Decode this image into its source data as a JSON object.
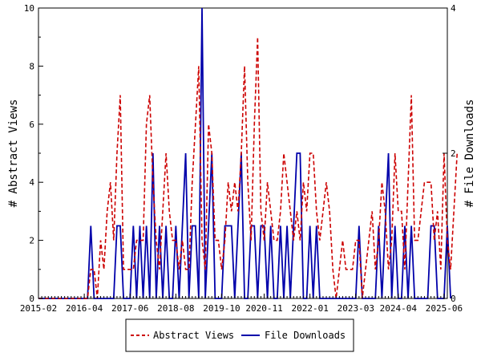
{
  "chart_data": {
    "type": "line",
    "x_axis": {
      "tick_labels": [
        "2015-02",
        "2016-04",
        "2017-06",
        "2018-08",
        "2019-10",
        "2020-11",
        "2022-01",
        "2023-03",
        "2024-04",
        "2025-06"
      ],
      "range_months": [
        0,
        125
      ],
      "tick_month_offsets": [
        0,
        14,
        28,
        42,
        56,
        69,
        83,
        97,
        110,
        124
      ]
    },
    "y_left": {
      "label": "# Abstract Views",
      "ylim": [
        0,
        10
      ],
      "ticks": [
        "0",
        "2",
        "4",
        "6",
        "8",
        "10"
      ]
    },
    "y_right": {
      "label": "# File Downloads",
      "ylim": [
        0,
        4
      ],
      "ticks": [
        "0",
        "2",
        "4"
      ]
    },
    "legend": {
      "placement": "bottom-center"
    },
    "series": [
      {
        "name": "Abstract Views",
        "axis": "left",
        "color": "#cc0000",
        "dash": "dashed",
        "values": [
          0,
          0,
          0,
          0,
          0,
          0,
          0,
          0,
          0,
          0,
          0,
          0,
          0,
          0,
          0,
          0,
          1,
          1,
          0,
          2,
          1,
          3,
          4,
          2,
          5,
          7,
          1,
          1,
          1,
          1,
          2,
          2,
          2,
          6,
          7,
          4,
          2,
          1,
          3,
          5,
          3,
          2,
          2,
          1,
          2,
          1,
          1,
          4,
          6,
          8,
          2,
          1,
          6,
          5,
          2,
          2,
          1,
          2,
          4,
          3,
          4,
          3,
          5,
          8,
          4,
          2,
          6,
          9,
          3,
          2,
          4,
          3,
          2,
          2,
          3,
          5,
          4,
          3,
          2,
          3,
          2,
          4,
          3,
          5,
          5,
          3,
          2,
          3,
          4,
          3,
          1,
          0,
          1,
          2,
          1,
          1,
          1,
          2,
          2,
          0,
          1,
          2,
          3,
          1,
          2,
          4,
          3,
          1,
          2,
          5,
          3,
          3,
          1,
          4,
          7,
          2,
          2,
          3,
          4,
          4,
          4,
          2,
          3,
          1,
          5,
          2,
          1,
          3,
          5
        ]
      },
      {
        "name": "File Downloads",
        "axis": "right",
        "color": "#0000aa",
        "dash": "solid",
        "values": [
          0,
          0,
          0,
          0,
          0,
          0,
          0,
          0,
          0,
          0,
          0,
          0,
          0,
          0,
          0,
          0,
          1,
          0,
          0,
          0,
          0,
          0,
          0,
          0,
          1,
          1,
          0,
          0,
          0,
          1,
          0,
          1,
          0,
          1,
          0,
          2,
          0,
          1,
          0,
          1,
          0,
          0,
          1,
          0,
          1,
          2,
          0,
          1,
          1,
          0,
          4,
          0,
          1,
          2,
          0,
          0,
          0,
          1,
          1,
          1,
          0,
          1,
          2,
          0,
          0,
          1,
          1,
          0,
          1,
          1,
          0,
          1,
          0,
          0,
          1,
          0,
          1,
          0,
          1,
          2,
          2,
          0,
          0,
          1,
          0,
          1,
          0,
          0,
          0,
          0,
          0,
          0,
          0,
          0,
          0,
          0,
          0,
          0,
          1,
          0,
          0,
          0,
          0,
          0,
          1,
          0,
          1,
          2,
          0,
          1,
          0,
          0,
          1,
          0,
          1,
          0,
          0,
          0,
          0,
          0,
          1,
          1,
          0,
          0,
          0,
          1,
          0
        ]
      }
    ]
  }
}
